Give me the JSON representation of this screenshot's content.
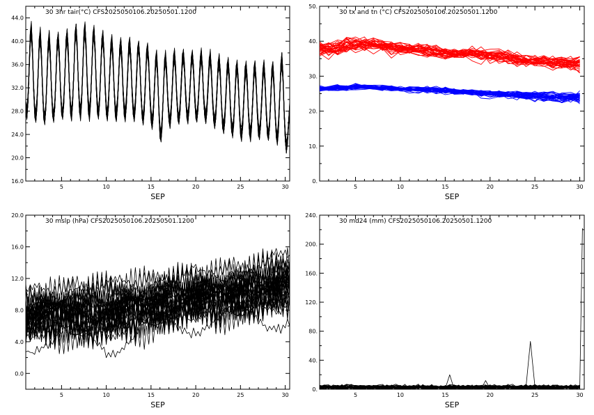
{
  "chart_data": [
    {
      "type": "line",
      "title": "30 3hr tair(°C) CFS2025050106.20250501.1200",
      "xlabel": "SEP",
      "ylabel": "",
      "xlim": [
        1,
        30.5
      ],
      "ylim": [
        16,
        46
      ],
      "x_ticks": [
        5,
        10,
        15,
        20,
        25,
        30
      ],
      "y_ticks": [
        "16.0",
        "20.0",
        "24.0",
        "28.0",
        "32.0",
        "36.0",
        "40.0",
        "44.0"
      ],
      "grid": false,
      "n_members": 30,
      "sampling": "3-hourly",
      "line_color": "#000000",
      "series": [
        {
          "x": [
            1,
            3,
            5,
            7,
            9,
            11,
            13,
            15,
            16,
            17,
            19,
            21,
            23,
            25,
            27,
            29,
            30,
            30.5
          ],
          "max": [
            43,
            41,
            41,
            43,
            42,
            40,
            40,
            39,
            37,
            38,
            38,
            38,
            37,
            36,
            36,
            36,
            38,
            30
          ],
          "min": [
            25,
            24,
            25,
            25,
            25,
            25,
            25,
            24,
            21,
            24,
            25,
            25,
            23,
            22,
            22,
            21,
            20,
            17
          ]
        }
      ]
    },
    {
      "type": "line",
      "title": "30 tx and tn (°C) CFS2025050106.20250501.1200",
      "xlabel": "SEP",
      "ylabel": "",
      "xlim": [
        1,
        30.5
      ],
      "ylim": [
        0,
        50
      ],
      "x_ticks": [
        5,
        10,
        15,
        20,
        25,
        30
      ],
      "y_ticks": [
        "0.",
        "10.",
        "20.",
        "30.",
        "40.",
        "50."
      ],
      "grid": false,
      "n_members": 30,
      "series": [
        {
          "color": "#ff0000",
          "x": [
            1,
            5,
            10,
            15,
            20,
            25,
            30
          ],
          "mean": [
            37.5,
            39,
            38,
            36.5,
            36,
            34,
            33.5
          ],
          "spread": [
            5,
            5,
            4,
            4,
            4,
            4,
            5
          ]
        },
        {
          "color": "#0000ff",
          "x": [
            1,
            5,
            10,
            15,
            20,
            25,
            30
          ],
          "mean": [
            26.5,
            27,
            26.5,
            26,
            25,
            24.5,
            24
          ],
          "spread": [
            2,
            2,
            2,
            2.5,
            2.5,
            3,
            4
          ]
        }
      ]
    },
    {
      "type": "line",
      "title": "30 mslp (hPa) CFS2025050106.20250501.1200",
      "xlabel": "SEP",
      "ylabel": "",
      "xlim": [
        1,
        30.5
      ],
      "ylim": [
        -2,
        20
      ],
      "x_ticks": [
        5,
        10,
        15,
        20,
        25,
        30
      ],
      "y_ticks": [
        "0.0",
        "4.0",
        "8.0",
        "12.0",
        "16.0",
        "20.0"
      ],
      "grid": false,
      "n_members": 30,
      "line_color": "#000000",
      "series": [
        {
          "x": [
            1,
            5,
            10,
            15,
            20,
            25,
            30
          ],
          "mean": [
            7,
            7.5,
            7.5,
            8.5,
            9.5,
            10,
            11
          ],
          "spread": [
            5,
            5,
            6,
            5,
            5,
            5,
            6
          ]
        }
      ]
    },
    {
      "type": "line",
      "title": "30 md24 (mm) CFS2025050106.20250501.1200",
      "xlabel": "SEP",
      "ylabel": "",
      "xlim": [
        1,
        30.5
      ],
      "ylim": [
        0,
        240
      ],
      "x_ticks": [
        5,
        10,
        15,
        20,
        25,
        30
      ],
      "y_ticks": [
        "0.",
        "40.",
        "80.",
        "120.",
        "160.",
        "200.",
        "240."
      ],
      "grid": false,
      "n_members": 30,
      "line_color": "#000000",
      "typical_max": 8,
      "spikes": [
        {
          "x": 15.5,
          "value": 20
        },
        {
          "x": 19.5,
          "value": 12
        },
        {
          "x": 24.5,
          "value": 66
        },
        {
          "x": 30.3,
          "value": 222
        }
      ]
    }
  ]
}
